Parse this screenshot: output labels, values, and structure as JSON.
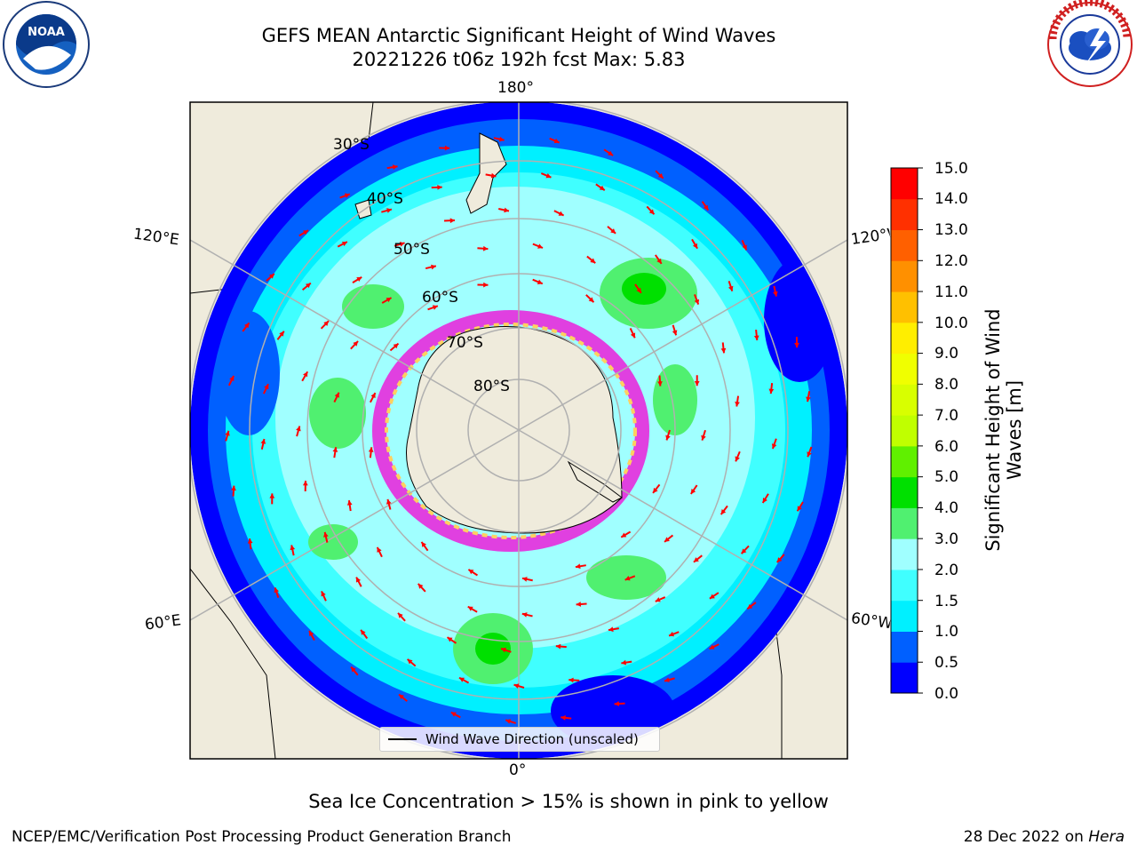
{
  "header": {
    "title_line1": "GEFS MEAN Antarctic Significant Height of Wind Waves",
    "title_line2": "20221226 t06z 192h fcst   Max: 5.83"
  },
  "logos": {
    "left": {
      "text": "NOAA",
      "ring_text": "NATIONAL OCEANIC AND ATMOSPHERIC ADMINISTRATION · U.S. DEPARTMENT OF COMMERCE"
    },
    "right": {
      "ring_text": "NATIONAL WEATHER SERVICE"
    }
  },
  "map": {
    "longitude_labels": {
      "top": "180°",
      "bottom": "0°",
      "upper_left": "120°E",
      "lower_left": "60°E",
      "upper_right": "120°W",
      "lower_right": "60°W"
    },
    "latitude_labels": [
      "30°S",
      "40°S",
      "50°S",
      "60°S",
      "70°S",
      "80°S"
    ],
    "colors": {
      "land": "#efebdc",
      "ocean_outside": "#ffffff",
      "graticule": "#b0b0b0",
      "arrow": "#ff0000",
      "ice_pink": "#e040e0",
      "ice_yellow": "#ffd060"
    },
    "legend": {
      "label": "Wind Wave Direction (unscaled)"
    }
  },
  "colorbar": {
    "title": "Significant Height of Wind Waves [m]",
    "ticks": [
      "15.0",
      "14.0",
      "13.0",
      "12.0",
      "11.0",
      "10.0",
      "9.0",
      "8.0",
      "7.0",
      "6.0",
      "5.0",
      "4.0",
      "3.0",
      "2.0",
      "1.5",
      "1.0",
      "0.5",
      "0.0"
    ],
    "levels": [
      {
        "lo": 0.0,
        "hi": 0.5,
        "color": "#0000ff"
      },
      {
        "lo": 0.5,
        "hi": 1.0,
        "color": "#0060ff"
      },
      {
        "lo": 1.0,
        "hi": 1.5,
        "color": "#00f0ff"
      },
      {
        "lo": 1.5,
        "hi": 2.0,
        "color": "#40ffff"
      },
      {
        "lo": 2.0,
        "hi": 3.0,
        "color": "#a0ffff"
      },
      {
        "lo": 3.0,
        "hi": 4.0,
        "color": "#50f070"
      },
      {
        "lo": 4.0,
        "hi": 5.0,
        "color": "#00e000"
      },
      {
        "lo": 5.0,
        "hi": 6.0,
        "color": "#60f000"
      },
      {
        "lo": 6.0,
        "hi": 7.0,
        "color": "#c0ff00"
      },
      {
        "lo": 7.0,
        "hi": 8.0,
        "color": "#d8ff00"
      },
      {
        "lo": 8.0,
        "hi": 9.0,
        "color": "#f0ff00"
      },
      {
        "lo": 9.0,
        "hi": 10.0,
        "color": "#ffee00"
      },
      {
        "lo": 10.0,
        "hi": 11.0,
        "color": "#ffc000"
      },
      {
        "lo": 11.0,
        "hi": 12.0,
        "color": "#ff9000"
      },
      {
        "lo": 12.0,
        "hi": 13.0,
        "color": "#ff6000"
      },
      {
        "lo": 13.0,
        "hi": 14.0,
        "color": "#ff3000"
      },
      {
        "lo": 14.0,
        "hi": 15.0,
        "color": "#ff0000"
      }
    ]
  },
  "caption": "Sea Ice Concentration > 15% is shown in pink to yellow",
  "footer": {
    "left": "NCEP/EMC/Verification Post Processing Product Generation Branch",
    "right_prefix": "28 Dec 2022 on ",
    "right_host": "Hera"
  }
}
